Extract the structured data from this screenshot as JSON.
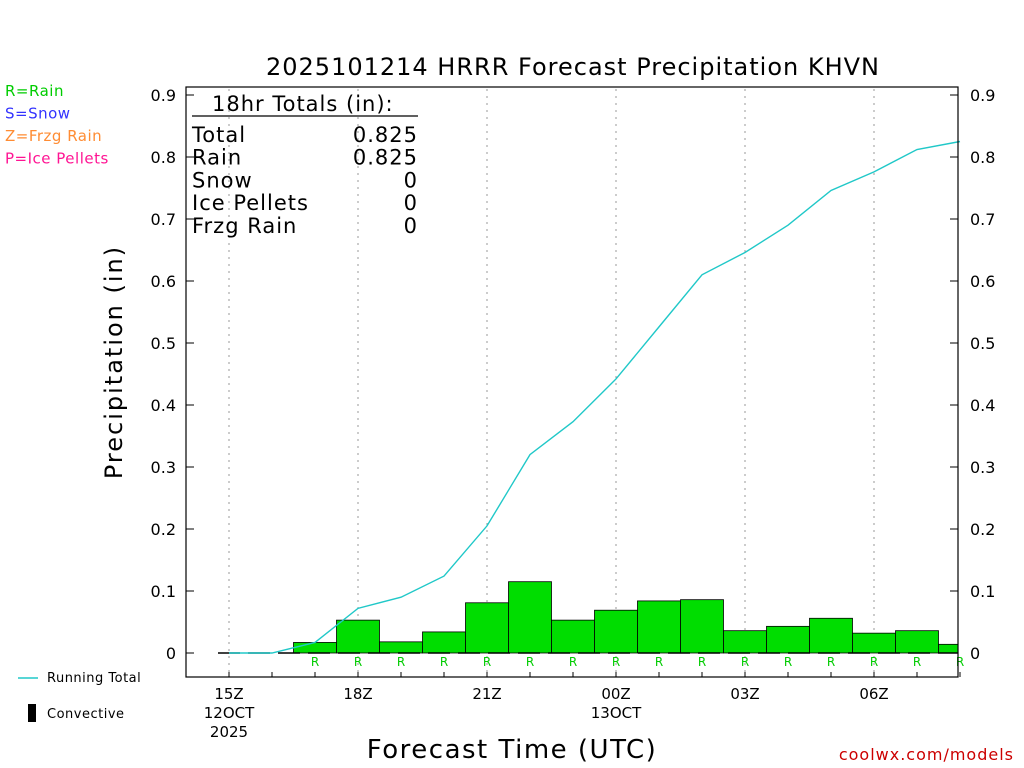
{
  "title": "2025101214 HRRR Forecast Precipitation KHVN",
  "footer": "coolwx.com/models",
  "legend_types": [
    {
      "label": "R=Rain",
      "color": "#00cc00"
    },
    {
      "label": "S=Snow",
      "color": "#3333ff"
    },
    {
      "label": "Z=Frzg Rain",
      "color": "#ff8c33"
    },
    {
      "label": "P=Ice Pellets",
      "color": "#ff1493"
    }
  ],
  "legend_lines": {
    "running_total": "Running Total",
    "convective": "Convective"
  },
  "totals": {
    "heading": "18hr Totals (in):",
    "rows": [
      {
        "label": "Total",
        "value": "0.825"
      },
      {
        "label": "Rain",
        "value": "0.825"
      },
      {
        "label": "Snow",
        "value": "0"
      },
      {
        "label": "Ice Pellets",
        "value": "0"
      },
      {
        "label": "Frzg Rain",
        "value": "0"
      }
    ]
  },
  "colors": {
    "bar": "#00dd00",
    "line": "#20c8c8",
    "type_letter": "#00cc00"
  },
  "chart_data": {
    "type": "bar",
    "title": "2025101214 HRRR Forecast Precipitation KHVN",
    "xlabel": "Forecast Time (UTC)",
    "ylabel": "Precipitation (in)",
    "ylim": [
      0,
      0.9
    ],
    "yticks": [
      "0",
      "0.1",
      "0.2",
      "0.3",
      "0.4",
      "0.5",
      "0.6",
      "0.7",
      "0.8",
      "0.9"
    ],
    "xtick_labels": [
      {
        "hour": 15,
        "lines": [
          "15Z",
          "12OCT",
          "2025"
        ]
      },
      {
        "hour": 18,
        "lines": [
          "18Z"
        ]
      },
      {
        "hour": 21,
        "lines": [
          "21Z"
        ]
      },
      {
        "hour": 24,
        "lines": [
          "00Z",
          "13OCT"
        ]
      },
      {
        "hour": 27,
        "lines": [
          "03Z"
        ]
      },
      {
        "hour": 30,
        "lines": [
          "06Z"
        ]
      }
    ],
    "hourly_hours": [
      16,
      17,
      18,
      19,
      20,
      21,
      22,
      23,
      24,
      25,
      26,
      27,
      28,
      29,
      30,
      31,
      32
    ],
    "hourly_values": [
      0.0,
      0.017,
      0.053,
      0.018,
      0.034,
      0.081,
      0.115,
      0.053,
      0.069,
      0.084,
      0.086,
      0.036,
      0.043,
      0.056,
      0.032,
      0.036,
      0.014
    ],
    "precip_type": [
      "",
      "R",
      "R",
      "R",
      "R",
      "R",
      "R",
      "R",
      "R",
      "R",
      "R",
      "R",
      "R",
      "R",
      "R",
      "R",
      "R"
    ],
    "running_total": {
      "hours": [
        15,
        16,
        17,
        18,
        19,
        20,
        21,
        22,
        23,
        24,
        25,
        26,
        27,
        28,
        29,
        30,
        31,
        32
      ],
      "values": [
        0,
        0,
        0.017,
        0.072,
        0.09,
        0.124,
        0.205,
        0.32,
        0.373,
        0.442,
        0.526,
        0.61,
        0.646,
        0.69,
        0.746,
        0.776,
        0.812,
        0.825
      ]
    },
    "series": [
      {
        "name": "Running Total",
        "values": [
          0,
          0,
          0.017,
          0.072,
          0.09,
          0.124,
          0.205,
          0.32,
          0.373,
          0.442,
          0.526,
          0.61,
          0.646,
          0.69,
          0.746,
          0.776,
          0.812,
          0.825
        ]
      }
    ],
    "grid": "vertical dotted"
  }
}
